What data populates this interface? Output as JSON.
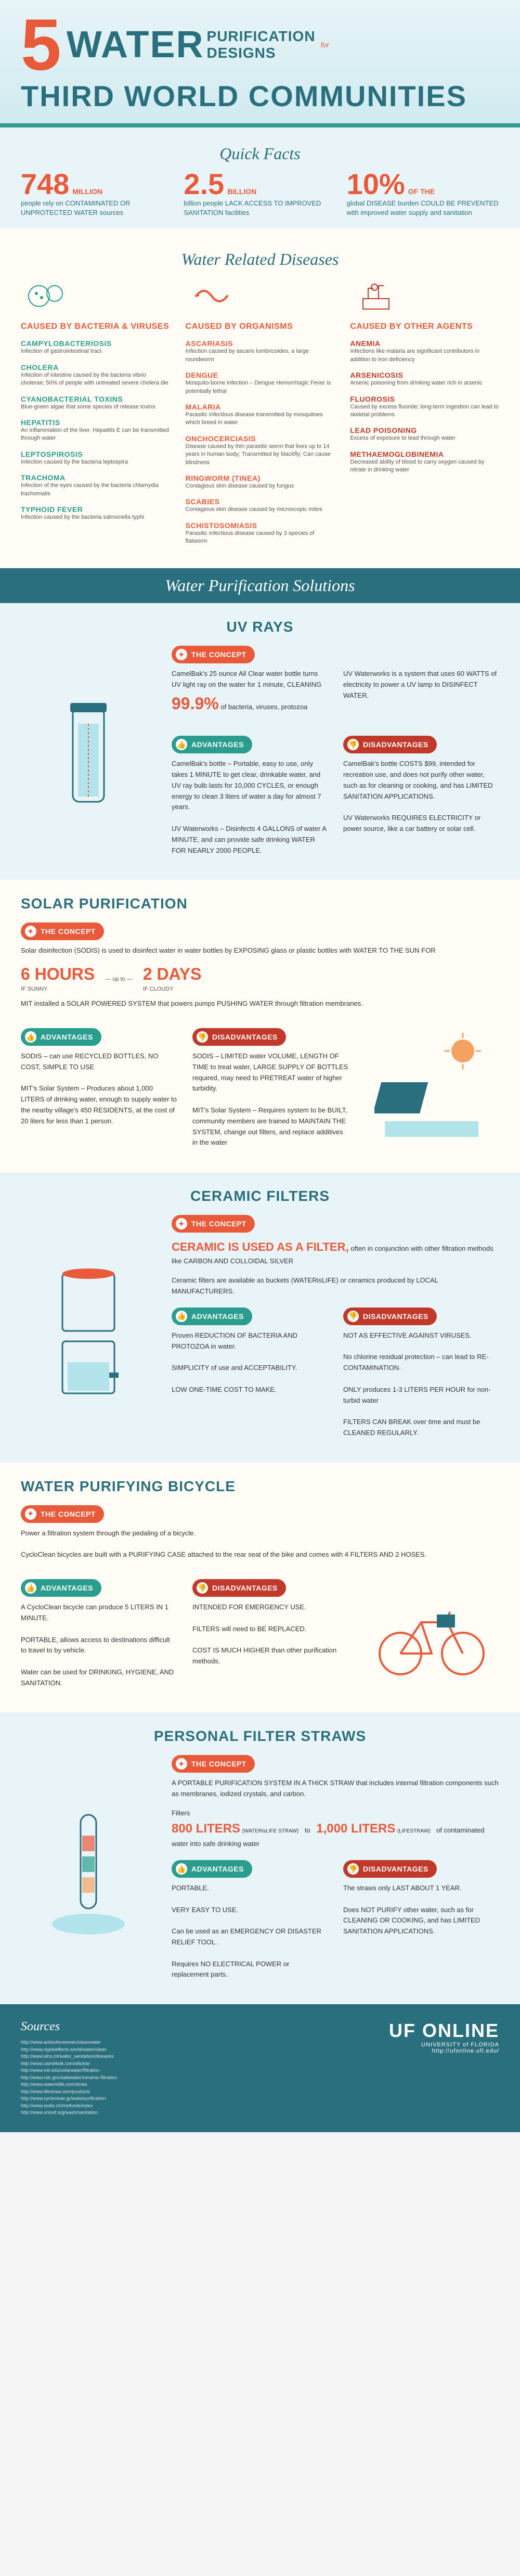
{
  "hero": {
    "number": "5",
    "water": "WATER",
    "purification": "PURIFICATION",
    "designs": "DESIGNS",
    "for": "for",
    "third": "THIRD WORLD COMMUNITIES"
  },
  "labels": {
    "quick_facts": "Quick Facts",
    "diseases": "Water Related Diseases",
    "solutions": "Water Purification Solutions",
    "concept": "THE CONCEPT",
    "advantages": "ADVANTAGES",
    "disadvantages": "DISADVANTAGES",
    "sources": "Sources"
  },
  "facts": [
    {
      "num": "748",
      "unit": "MILLION",
      "text": "people rely on CONTAMINATED OR UNPROTECTED WATER sources"
    },
    {
      "num": "2.5",
      "unit": "BILLION",
      "text": "billion people LACK ACCESS TO IMPROVED SANITATION facilities"
    },
    {
      "num": "10%",
      "unit": "OF THE",
      "text": "global DISEASE burden COULD BE PREVENTED with improved water supply and sanitation"
    }
  ],
  "disease_cols": [
    {
      "header": "CAUSED BY BACTERIA & VIRUSES",
      "class": "col-teal",
      "items": [
        {
          "name": "CAMPYLOBACTERIOSIS",
          "desc": "Infection of gastrointestinal tract"
        },
        {
          "name": "CHOLERA",
          "desc": "Infection of intestine caused by the bacteria vibrio cholerae; 50% of people with untreated severe cholera die"
        },
        {
          "name": "CYANOBACTERIAL TOXINS",
          "desc": "Blue-green algae that some species of release toxins"
        },
        {
          "name": "HEPATITIS",
          "desc": "An inflammation of the liver. Hepatitis E can be transmitted through water"
        },
        {
          "name": "LEPTOSPIROSIS",
          "desc": "Infection caused by the bacteria leptospira"
        },
        {
          "name": "TRACHOMA",
          "desc": "Infection of the eyes caused by the bacteria chlamydia trachomatis"
        },
        {
          "name": "TYPHOID FEVER",
          "desc": "Infection caused by the bacteria salmonella typhi"
        }
      ]
    },
    {
      "header": "CAUSED BY ORGANISMS",
      "class": "col-orange",
      "items": [
        {
          "name": "ASCARIASIS",
          "desc": "Infection caused by ascaris lumbricoides, a large roundworm"
        },
        {
          "name": "DENGUE",
          "desc": "Mosquito-borne infection – Dengue Hemorrhagic Fever is potentially lethal"
        },
        {
          "name": "MALARIA",
          "desc": "Parasitic infectious disease transmitted by mosquitoes which breed in water"
        },
        {
          "name": "ONCHOCERCIASIS",
          "desc": "Disease caused by thin parasitic worm that lives up to 14 years in human body; Transmitted by blackfly; Can cause blindness"
        },
        {
          "name": "RINGWORM (TINEA)",
          "desc": "Contagious skin disease caused by fungus"
        },
        {
          "name": "SCABIES",
          "desc": "Contagious skin disease caused by microscopic mites"
        },
        {
          "name": "SCHISTOSOMIASIS",
          "desc": "Parasitic infectious disease caused by 3 species of flatworm"
        }
      ]
    },
    {
      "header": "CAUSED BY OTHER AGENTS",
      "class": "col-red",
      "items": [
        {
          "name": "ANEMIA",
          "desc": "Infections like malaria are significant contributors in addition to iron deficiency"
        },
        {
          "name": "ARSENICOSIS",
          "desc": "Arsenic poisoning from drinking water rich in arsenic"
        },
        {
          "name": "FLUOROSIS",
          "desc": "Caused by excess fluoride; long-term ingestion can lead to skeletal problems"
        },
        {
          "name": "LEAD POISONING",
          "desc": "Excess of exposure to lead through water"
        },
        {
          "name": "METHAEMOGLOBINEMIA",
          "desc": "Decreased ability of blood to carry oxygen caused by nitrate in drinking water"
        }
      ]
    }
  ],
  "uv": {
    "title": "UV RAYS",
    "concept1": "CamelBak's 25 ounce All Clear water bottle turns UV light ray on the water for 1 minute, CLEANING",
    "stat": "99.9%",
    "concept1b": "of bacteria, viruses, protozoa",
    "concept2": "UV Waterworks is a system that uses 60 WATTS of electricity to power a UV lamp to DISINFECT WATER.",
    "adv": "CamelBak's bottle – Portable, easy to use, only takes 1 MINUTE to get clear, drinkable water, and UV ray bulb lasts for 10,000 CYCLES, or enough energy to clean 3 liters of water a day for almost 7 years.\n\nUV Waterworks – Disinfects 4 GALLONS of water A MINUTE, and can provide safe drinking WATER FOR NEARLY 2000 PEOPLE.",
    "dis": "CamelBak's bottle COSTS $99, intended for recreation use, and does not purify other water, such as for cleaning or cooking, and has LIMITED SANITATION APPLICATIONS.\n\nUV Waterworks REQUIRES ELECTRICITY or power source, like a car battery or solar cell."
  },
  "solar": {
    "title": "SOLAR PURIFICATION",
    "concept": "Solar disinfection (SODIS) is used to disinfect water in water bottles by EXPOSING glass or plastic bottles with WATER TO THE SUN FOR",
    "hours": "6 HOURS",
    "sunny": "IF SUNNY",
    "days": "2 DAYS",
    "cloudy": "IF CLOUDY",
    "upto": "— up to —",
    "mit": "MIT installed a SOLAR POWERED SYSTEM that powers pumps PUSHING WATER through filtration membranes.",
    "adv": "SODIS – can use RECYCLED BOTTLES, NO COST, SIMPLE TO USE\n\nMIT's Solar System – Produces about 1,000 LITERS of drinking water, enough to supply water to the nearby village's 450 RESIDENTS, at the cost of 20 liters for less than 1 person.",
    "dis": "SODIS – LIMITED water VOLUME, LENGTH OF TIME to treat water, LARGE SUPPLY OF BOTTLES required, may need to PRETREAT water of higher turbidity.\n\nMIT's Solar System – Requires system to be BUILT, community members are trained to MAINTAIN THE SYSTEM, change out filters, and replace additives in the water"
  },
  "ceramic": {
    "title": "CERAMIC FILTERS",
    "concept_main": "CERAMIC IS USED AS A FILTER,",
    "concept_sub": "often in conjunction with other filtration methods like CARBON AND COLLOIDAL SILVER",
    "concept2": "Ceramic filters are available as buckets (WATERisLIFE) or ceramics produced by LOCAL MANUFACTURERS.",
    "adv": "Proven REDUCTION OF BACTERIA AND PROTOZOA in water.\n\nSIMPLICITY of use and ACCEPTABILITY.\n\nLOW ONE-TIME COST TO MAKE.",
    "dis": "NOT AS EFFECTIVE AGAINST VIRUSES.\n\nNo chlorine residual protection – can lead to RE-CONTAMINATION.\n\nONLY produces 1-3 LITERS PER HOUR for non-turbid water\n\nFILTERS CAN BREAK over time and must be CLEANED REGULARLY."
  },
  "bicycle": {
    "title": "WATER PURIFYING BICYCLE",
    "concept": "Power a filtration system through the pedaling of a bicycle.\n\nCycloClean bicycles are built with a PURIFYING CASE attached to the rear seat of the bike and comes with 4 FILTERS AND 2 HOSES.",
    "adv": "A CycloClean bicycle can produce 5 LITERS IN 1 MINUTE.\n\nPORTABLE, allows access to destinations difficult to travel to by vehicle.\n\nWater can be used for DRINKING, HYGIENE, AND SANITATION.",
    "dis": "INTENDED FOR EMERGENCY USE.\n\nFILTERS will need to BE REPLACED.\n\nCOST IS MUCH HIGHER than other purification methods."
  },
  "straw": {
    "title": "PERSONAL FILTER STRAWS",
    "concept": "A PORTABLE PURIFICATION SYSTEM IN A THICK STRAW that includes internal filtration components such as membranes, iodized crystals, and carbon.",
    "filters": "Filters",
    "s1": "800 LITERS",
    "s1b": "(WATERisLIFE STRAW)",
    "to": "to",
    "s2": "1,000 LITERS",
    "s2b": "(LIFESTRAW)",
    "s3": "of contaminated water into safe drinking water",
    "adv": "PORTABLE.\n\nVERY EASY TO USE.\n\nCan be used as an EMERGENCY OR DISASTER RELIEF TOOL.\n\nRequires NO ELECTRICAL POWER or replacement parts.",
    "dis": "The straws only LAST ABOUT 1 YEAR.\n\nDoes NOT PURIFY other water, such as for CLEANING OR COOKING, and has LIMITED SANITATION APPLICATIONS."
  },
  "sources": [
    "http://www.actionforwomen/cleanwater",
    "http://www.rippleeffects.world/water/clean",
    "http://www.who.int/water_sanitation/diseases",
    "http://www.camelbak.com/allclear",
    "http://www.mit.edu/solarwater/filtration",
    "http://www.cdc.gov/safewater/ceramic-filtration",
    "http://www.waterislife.com/straw",
    "http://www.lifestraw.com/products",
    "http://www.cycloclean.jp/waterpurification",
    "http://www.sodis.ch/methode/index",
    "http://www.unicef.org/wash/sanitation"
  ],
  "uf": {
    "brand": "UF ONLINE",
    "sub": "UNIVERSITY of FLORIDA",
    "url": "http://ufonline.ufl.edu/"
  },
  "colors": {
    "teal": "#2a9d8f",
    "teal_dark": "#2a6f7d",
    "orange": "#e85a3a",
    "red": "#c0392b",
    "bg_light": "#e8f4f8",
    "bg_cream": "#fffdf5"
  }
}
